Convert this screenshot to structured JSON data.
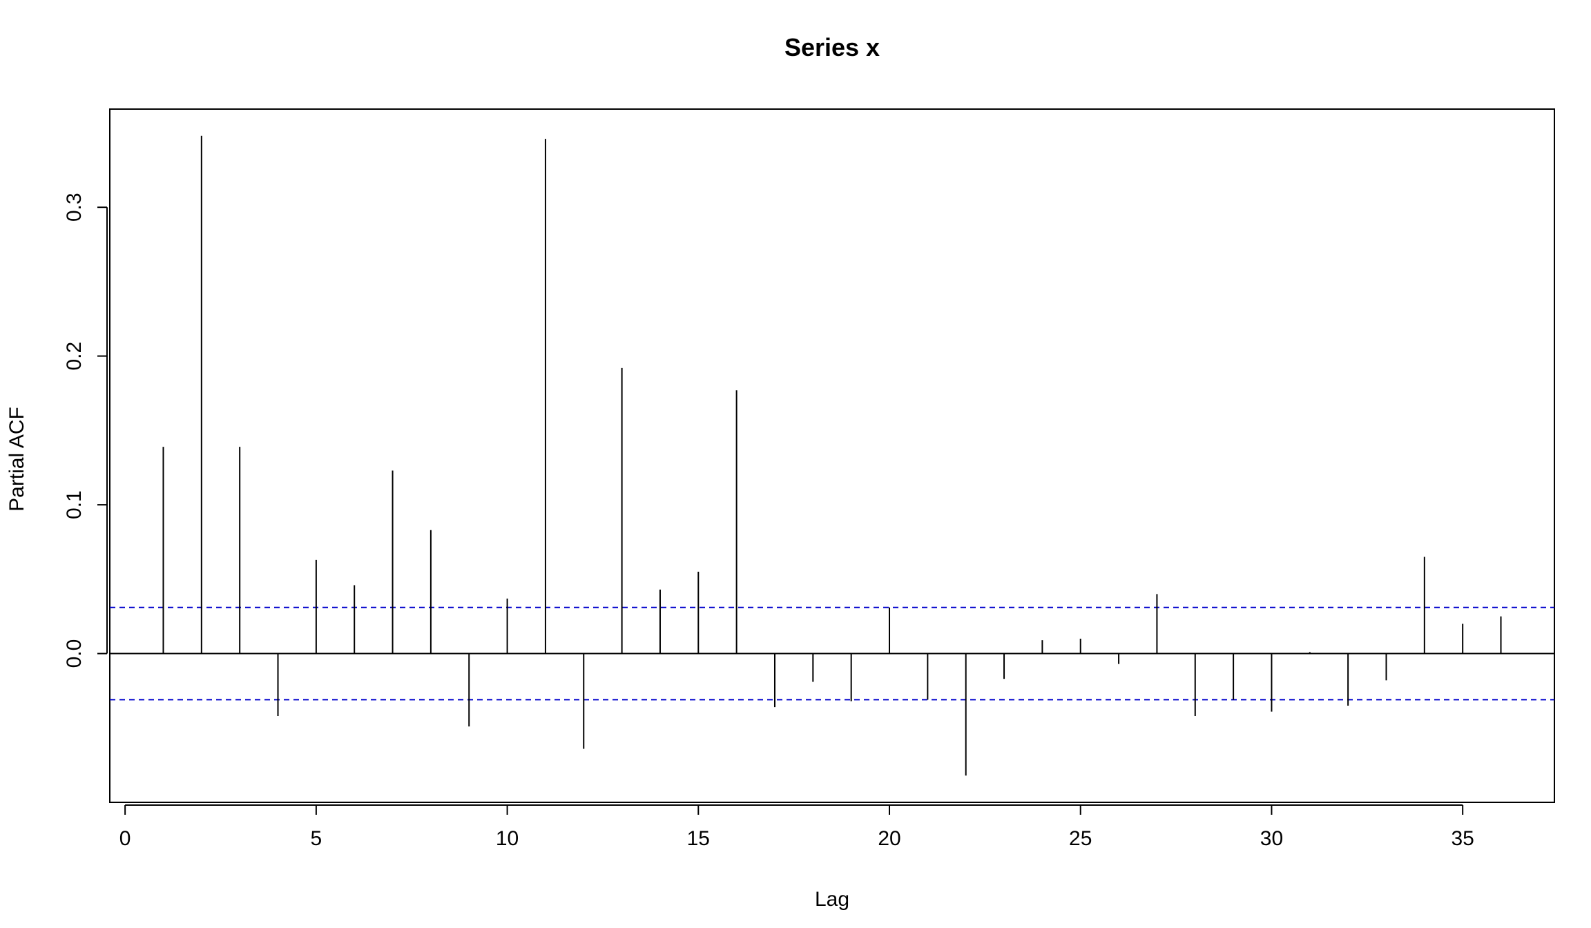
{
  "chart_data": {
    "type": "bar",
    "title": "Series  x",
    "xlabel": "Lag",
    "ylabel": "Partial ACF",
    "xlim": [
      -0.4,
      37.4
    ],
    "ylim": [
      -0.1,
      0.366
    ],
    "x_ticks": [
      0,
      5,
      10,
      15,
      20,
      25,
      30,
      35
    ],
    "x_tick_labels": [
      "0",
      "5",
      "10",
      "15",
      "20",
      "25",
      "30",
      "35"
    ],
    "y_ticks": [
      0.0,
      0.1,
      0.2,
      0.3
    ],
    "y_tick_labels": [
      "0.0",
      "0.1",
      "0.2",
      "0.3"
    ],
    "confidence_bound": 0.031,
    "colors": {
      "bars": "#000000",
      "bounds": "#0000cc",
      "zero_line": "#000000"
    },
    "grid": false,
    "lags": [
      1,
      2,
      3,
      4,
      5,
      6,
      7,
      8,
      9,
      10,
      11,
      12,
      13,
      14,
      15,
      16,
      17,
      18,
      19,
      20,
      21,
      22,
      23,
      24,
      25,
      26,
      27,
      28,
      29,
      30,
      31,
      32,
      33,
      34,
      35,
      36
    ],
    "values": [
      0.139,
      0.348,
      0.139,
      -0.042,
      0.063,
      0.046,
      0.123,
      0.083,
      -0.049,
      0.037,
      0.346,
      -0.064,
      0.192,
      0.043,
      0.055,
      0.177,
      -0.036,
      -0.019,
      -0.032,
      0.031,
      -0.031,
      -0.082,
      -0.017,
      0.009,
      0.01,
      -0.007,
      0.04,
      -0.042,
      -0.031,
      -0.039,
      0.001,
      -0.035,
      -0.018,
      0.065,
      0.02,
      0.025
    ]
  }
}
